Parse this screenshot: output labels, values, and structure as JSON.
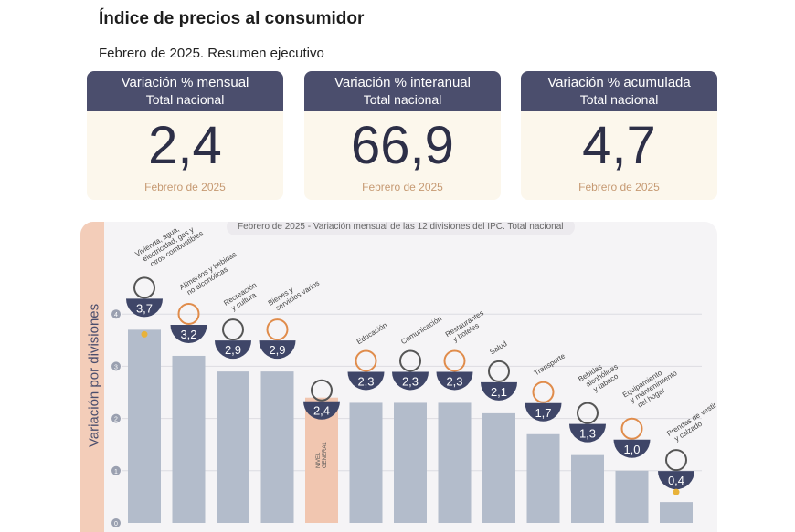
{
  "header": {
    "title": "Índice de precios al consumidor",
    "subtitle": "Febrero de 2025. Resumen ejecutivo"
  },
  "cards": [
    {
      "title": "Variación % mensual",
      "scope": "Total nacional",
      "value": "2,4",
      "period": "Febrero de 2025"
    },
    {
      "title": "Variación % interanual",
      "scope": "Total nacional",
      "value": "66,9",
      "period": "Febrero de 2025"
    },
    {
      "title": "Variación % acumulada",
      "scope": "Total nacional",
      "value": "4,7",
      "period": "Febrero de 2025"
    }
  ],
  "chart_data": {
    "type": "bar",
    "title": "Febrero de 2025 - Variación mensual de las 12 divisiones del IPC. Total nacional",
    "ylabel": "Variación por divisiones",
    "ylim": [
      0,
      4
    ],
    "yticks": [
      "0",
      "1",
      "2",
      "3",
      "4"
    ],
    "categories": [
      [
        "Vivienda, agua,",
        "electricidad, gas y",
        "otros combustibles"
      ],
      [
        "Alimentos y bebidas",
        "no alcohólicas"
      ],
      [
        "Recreación",
        "y cultura"
      ],
      [
        "Bienes y",
        "servicios varios"
      ],
      [
        "NIVEL",
        "GENERAL"
      ],
      [
        "Educación"
      ],
      [
        "Comunicación"
      ],
      [
        "Restaurantes",
        "y hoteles"
      ],
      [
        "Salud"
      ],
      [
        "Transporte"
      ],
      [
        "Bebidas",
        "alcohólicas",
        "y tabaco"
      ],
      [
        "Equipamiento",
        "y mantenimiento",
        "del hogar"
      ],
      [
        "Prendas de vestir",
        "y calzado"
      ]
    ],
    "values": [
      3.7,
      3.2,
      2.9,
      2.9,
      2.4,
      2.3,
      2.3,
      2.3,
      2.1,
      1.7,
      1.3,
      1.0,
      0.4
    ],
    "value_labels": [
      "3,7",
      "3,2",
      "2,9",
      "2,9",
      "2,4",
      "2,3",
      "2,3",
      "2,3",
      "2,1",
      "1,7",
      "1,3",
      "1,0",
      "0,4"
    ],
    "highlight_index": 4,
    "colors": {
      "bar": "#b3bccb",
      "highlight": "#f1c6b0",
      "bowl": "#3f4668",
      "grid": "#dcdce2",
      "icon": "#e08c4b"
    }
  }
}
